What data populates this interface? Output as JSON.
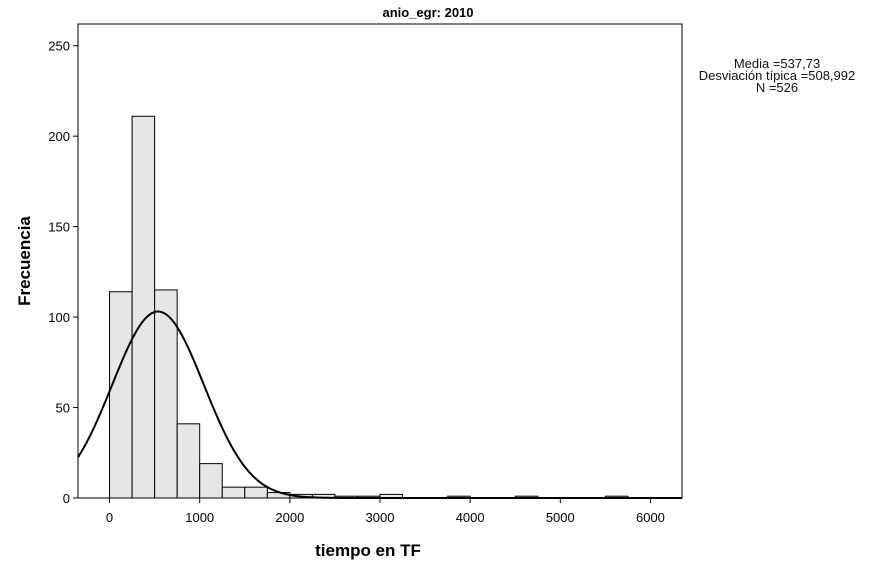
{
  "chart_data": {
    "type": "bar",
    "title": "anio_egr: 2010",
    "xlabel": "tiempo en TF",
    "ylabel": "Frecuencia",
    "xlim": [
      -350,
      6350
    ],
    "ylim": [
      0,
      262
    ],
    "x_ticks": [
      "0",
      "1000",
      "2000",
      "3000",
      "4000",
      "5000",
      "6000"
    ],
    "x_tick_values": [
      0,
      1000,
      2000,
      3000,
      4000,
      5000,
      6000
    ],
    "y_ticks": [
      "0",
      "50",
      "100",
      "150",
      "200",
      "250"
    ],
    "y_tick_values": [
      0,
      50,
      100,
      150,
      200,
      250
    ],
    "bin_width": 250,
    "bins": [
      {
        "x0": 0,
        "x1": 250,
        "count": 114
      },
      {
        "x0": 250,
        "x1": 500,
        "count": 211
      },
      {
        "x0": 500,
        "x1": 750,
        "count": 115
      },
      {
        "x0": 750,
        "x1": 1000,
        "count": 41
      },
      {
        "x0": 1000,
        "x1": 1250,
        "count": 19
      },
      {
        "x0": 1250,
        "x1": 1500,
        "count": 6
      },
      {
        "x0": 1500,
        "x1": 1750,
        "count": 6
      },
      {
        "x0": 1750,
        "x1": 2000,
        "count": 3
      },
      {
        "x0": 2000,
        "x1": 2250,
        "count": 2
      },
      {
        "x0": 2250,
        "x1": 2500,
        "count": 2
      },
      {
        "x0": 2500,
        "x1": 2750,
        "count": 1
      },
      {
        "x0": 2750,
        "x1": 3000,
        "count": 1
      },
      {
        "x0": 3000,
        "x1": 3250,
        "count": 2
      },
      {
        "x0": 3750,
        "x1": 4000,
        "count": 1
      },
      {
        "x0": 4500,
        "x1": 4750,
        "count": 1
      },
      {
        "x0": 5500,
        "x1": 5750,
        "count": 1
      }
    ],
    "normal_curve": {
      "mean": 537.73,
      "sd": 508.992,
      "n": 526
    },
    "stats_text": [
      "Media =537,73",
      "Desviación típica =508,992",
      "N =526"
    ],
    "colors": {
      "bar_fill": "#e6e6e6",
      "bar_stroke": "#000000",
      "curve": "#000000",
      "frame": "#000000"
    }
  }
}
